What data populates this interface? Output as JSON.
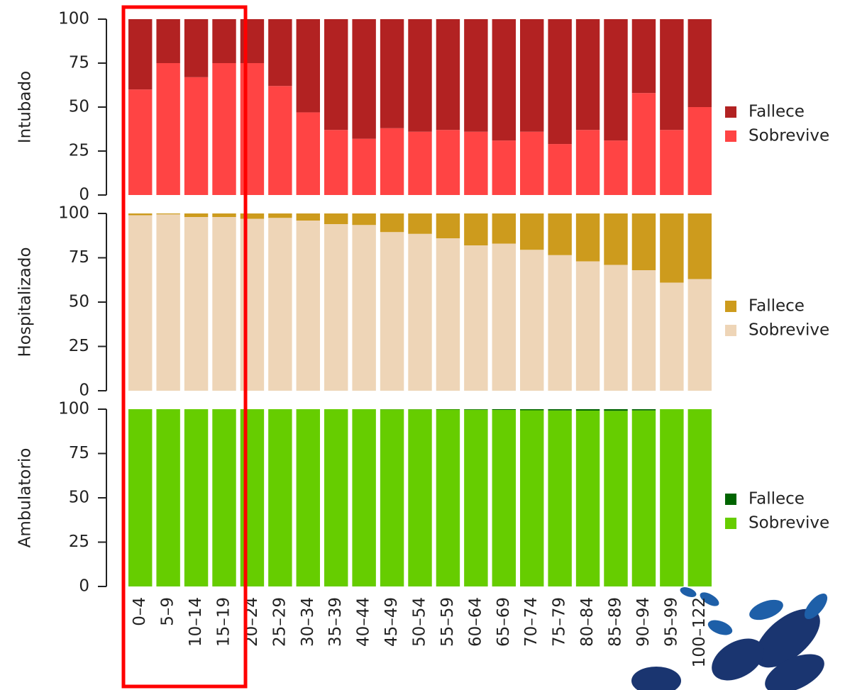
{
  "chart_data": [
    {
      "type": "bar",
      "ylabel": "Intubado",
      "categories": [
        "0–4",
        "5–9",
        "10–14",
        "15–19",
        "20–24",
        "25–29",
        "30–34",
        "35–39",
        "40–44",
        "45–49",
        "50–54",
        "55–59",
        "60–64",
        "65–69",
        "70–74",
        "75–79",
        "80–84",
        "85–89",
        "90–94",
        "95–99",
        "100–122"
      ],
      "series": [
        {
          "name": "Sobrevive",
          "color": "#ff4444",
          "values": [
            60,
            75,
            67,
            75,
            75,
            62,
            47,
            37,
            32,
            38,
            36,
            37,
            36,
            31,
            36,
            29,
            37,
            31,
            58,
            37,
            50
          ]
        },
        {
          "name": "Fallece",
          "color": "#b22222",
          "values": [
            40,
            25,
            33,
            25,
            25,
            38,
            53,
            63,
            68,
            62,
            64,
            63,
            64,
            69,
            64,
            71,
            63,
            69,
            42,
            63,
            50
          ]
        }
      ],
      "ylim": [
        0,
        100
      ],
      "yticks": [
        0,
        25,
        50,
        75,
        100
      ]
    },
    {
      "type": "bar",
      "ylabel": "Hospitalizado",
      "categories": [
        "0–4",
        "5–9",
        "10–14",
        "15–19",
        "20–24",
        "25–29",
        "30–34",
        "35–39",
        "40–44",
        "45–49",
        "50–54",
        "55–59",
        "60–64",
        "65–69",
        "70–74",
        "75–79",
        "80–84",
        "85–89",
        "90–94",
        "95–99",
        "100–122"
      ],
      "series": [
        {
          "name": "Sobrevive",
          "color": "#eed5b7",
          "values": [
            99,
            99.5,
            98,
            98,
            97,
            97.5,
            96,
            94,
            93.5,
            89.5,
            88.5,
            86,
            82,
            83,
            79.5,
            76.5,
            73,
            71,
            68,
            61,
            63
          ]
        },
        {
          "name": "Fallece",
          "color": "#cd9b1d",
          "values": [
            1,
            0.5,
            2,
            2,
            3,
            2.5,
            4,
            6,
            6.5,
            10.5,
            11.5,
            14,
            18,
            17,
            20.5,
            23.5,
            27,
            29,
            32,
            39,
            37
          ]
        }
      ],
      "ylim": [
        0,
        100
      ],
      "yticks": [
        0,
        25,
        50,
        75,
        100
      ]
    },
    {
      "type": "bar",
      "ylabel": "Ambulatorio",
      "categories": [
        "0–4",
        "5–9",
        "10–14",
        "15–19",
        "20–24",
        "25–29",
        "30–34",
        "35–39",
        "40–44",
        "45–49",
        "50–54",
        "55–59",
        "60–64",
        "65–69",
        "70–74",
        "75–79",
        "80–84",
        "85–89",
        "90–94",
        "95–99",
        "100–122"
      ],
      "series": [
        {
          "name": "Sobrevive",
          "color": "#66cd00",
          "values": [
            100,
            100,
            100,
            100,
            100,
            100,
            100,
            100,
            100,
            99.9,
            99.9,
            99.8,
            99.7,
            99.6,
            99.4,
            99.3,
            99.2,
            99.1,
            99.3,
            100,
            100
          ]
        },
        {
          "name": "Fallece",
          "color": "#006400",
          "values": [
            0,
            0,
            0,
            0,
            0,
            0,
            0,
            0,
            0,
            0.1,
            0.1,
            0.2,
            0.3,
            0.4,
            0.6,
            0.7,
            0.8,
            0.9,
            0.7,
            0,
            0
          ]
        }
      ],
      "ylim": [
        0,
        100
      ],
      "yticks": [
        0,
        25,
        50,
        75,
        100
      ]
    }
  ]
}
